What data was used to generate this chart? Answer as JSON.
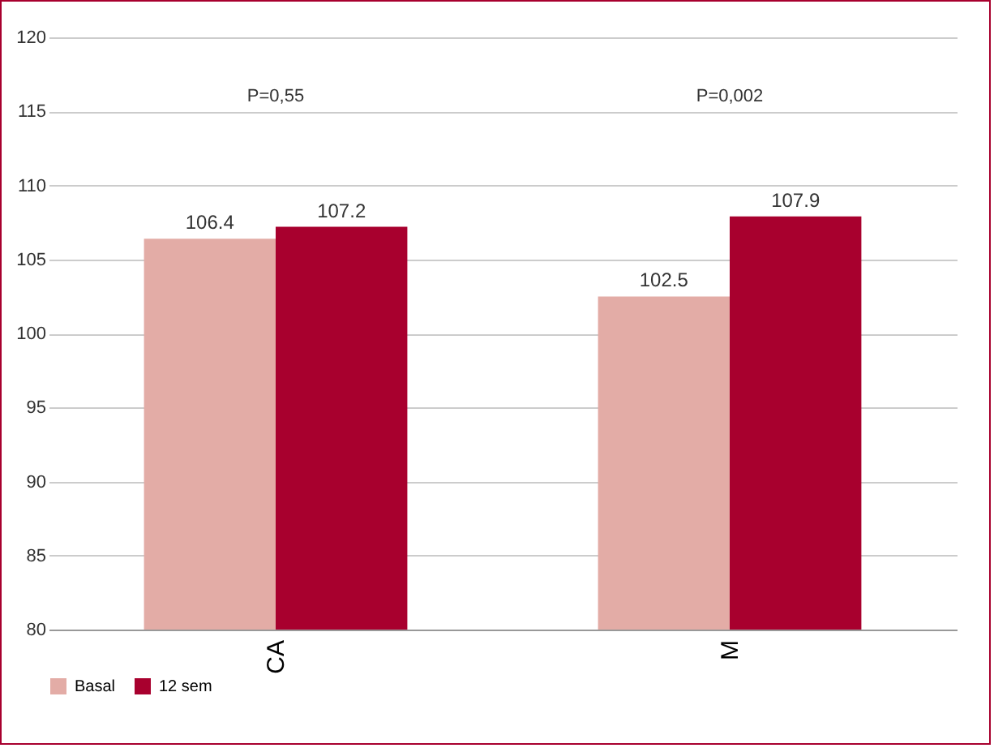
{
  "chart_data": {
    "type": "bar",
    "categories": [
      "CA",
      "M"
    ],
    "series": [
      {
        "name": "Basal",
        "color": "#e3aca6",
        "values": [
          106.4,
          102.5
        ]
      },
      {
        "name": "12 sem",
        "color": "#a8002e",
        "values": [
          107.2,
          107.9
        ]
      }
    ],
    "ylim": [
      80,
      120
    ],
    "yticks": [
      80,
      85,
      90,
      95,
      100,
      105,
      110,
      115,
      120
    ],
    "grid": "y",
    "legend": "bottom",
    "data_labels": true,
    "annotations": [
      "P=0,55",
      "P=0,002"
    ]
  }
}
